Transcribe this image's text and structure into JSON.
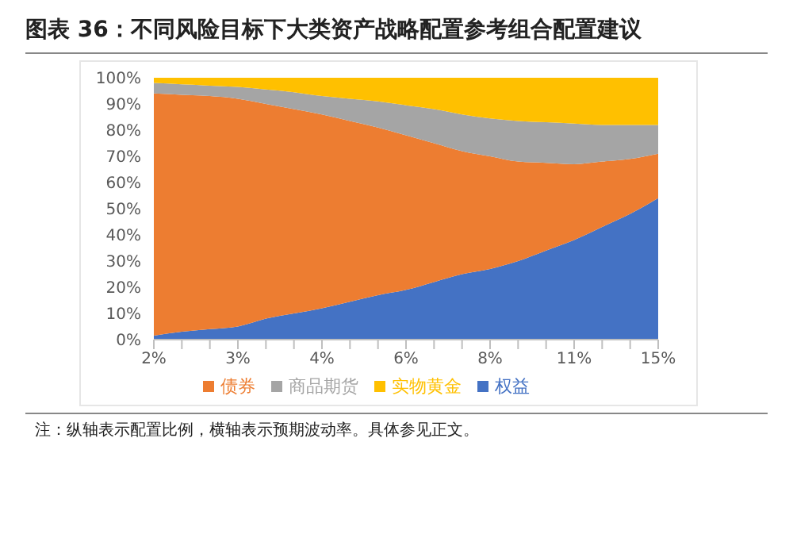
{
  "chart_data": {
    "type": "area",
    "title": "图表 36：不同风险目标下大类资产战略配置参考组合配置建议",
    "categories": [
      "2%",
      null,
      null,
      "3%",
      null,
      null,
      "4%",
      null,
      null,
      "6%",
      null,
      null,
      "8%",
      null,
      null,
      "11%",
      null,
      null,
      "15%"
    ],
    "stacked": true,
    "series": [
      {
        "name": "权益",
        "color": "#4472c4",
        "values": [
          1.5,
          3,
          4,
          5,
          8,
          10,
          12,
          14.5,
          17,
          19,
          22,
          25,
          27,
          30,
          34,
          38,
          43,
          48,
          54
        ]
      },
      {
        "name": "债券",
        "color": "#ed7d31",
        "values": [
          92.5,
          90.5,
          89,
          87,
          82,
          78,
          74,
          69,
          64,
          59,
          53,
          47,
          43,
          38,
          33.5,
          29,
          25,
          21,
          17
        ]
      },
      {
        "name": "商品期货",
        "color": "#a5a5a5",
        "values": [
          4,
          4,
          4,
          4.5,
          5.5,
          6.5,
          7,
          8.5,
          10,
          11.5,
          13,
          14,
          14.5,
          15.5,
          15.5,
          15.5,
          14,
          13,
          11
        ]
      },
      {
        "name": "实物黄金",
        "color": "#ffc000",
        "values": [
          2,
          2.5,
          3,
          3.5,
          4.5,
          5.5,
          7,
          8,
          9,
          10.5,
          12,
          14,
          15.5,
          16.5,
          17,
          17.5,
          18,
          18,
          18
        ]
      }
    ],
    "ylim": [
      0,
      100
    ],
    "yticks": [
      {
        "value": 0,
        "label": "0%"
      },
      {
        "value": 10,
        "label": "10%"
      },
      {
        "value": 20,
        "label": "20%"
      },
      {
        "value": 30,
        "label": "30%"
      },
      {
        "value": 40,
        "label": "40%"
      },
      {
        "value": 50,
        "label": "50%"
      },
      {
        "value": 60,
        "label": "60%"
      },
      {
        "value": 70,
        "label": "70%"
      },
      {
        "value": 80,
        "label": "80%"
      },
      {
        "value": 90,
        "label": "90%"
      },
      {
        "value": 100,
        "label": "100%"
      }
    ],
    "legend": "bottom",
    "annotations": [
      "注：纵轴表示配置比例，横轴表示预期波动率。具体参见正文。"
    ]
  }
}
